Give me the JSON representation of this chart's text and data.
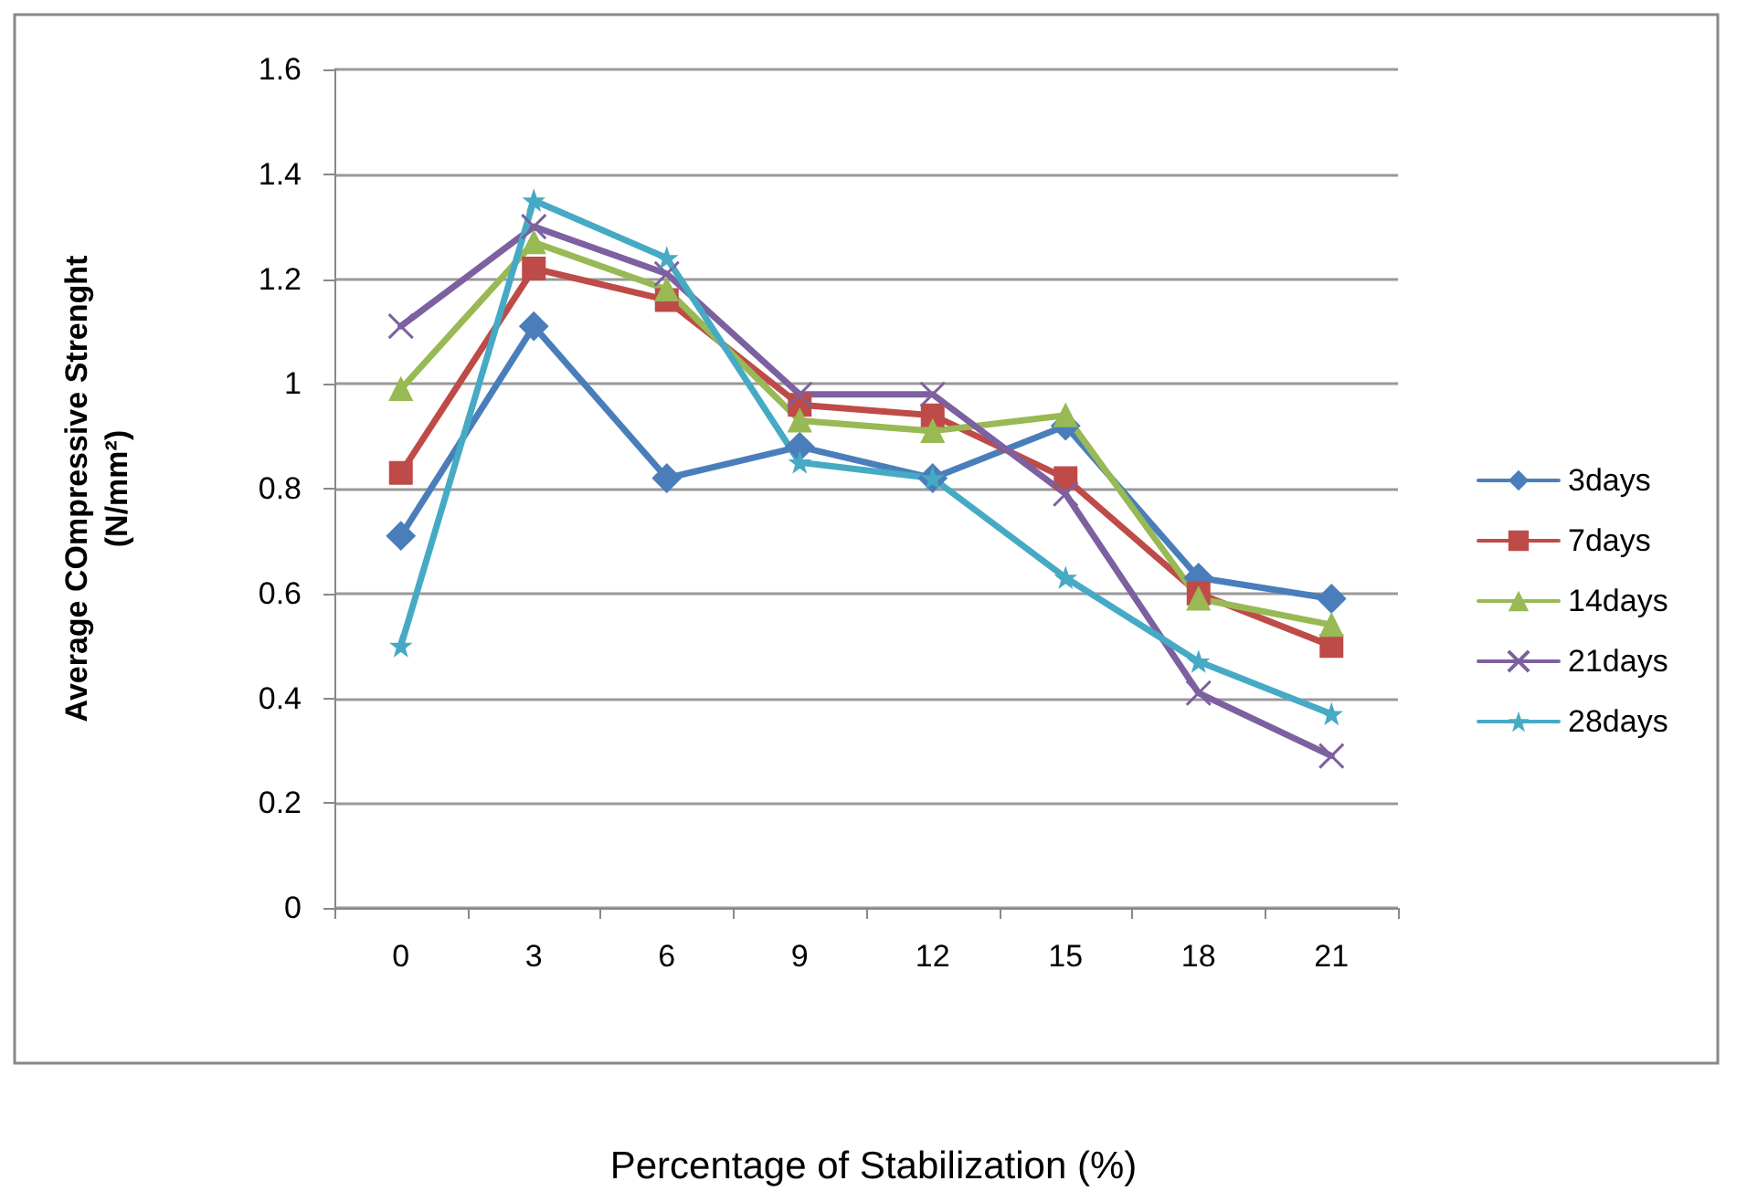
{
  "chart_data": {
    "type": "line",
    "xlabel": "Percentage of Stabilization (%)",
    "ylabel": "Average COmpressive Strenght\n(N/mm²)",
    "categories": [
      "0",
      "3",
      "6",
      "9",
      "12",
      "15",
      "18",
      "21"
    ],
    "series": [
      {
        "name": "3days",
        "color": "#4a7ebb",
        "marker": "diamond",
        "values": [
          0.71,
          1.11,
          0.82,
          0.88,
          0.82,
          0.92,
          0.63,
          0.59
        ]
      },
      {
        "name": "7days",
        "color": "#be4b48",
        "marker": "square",
        "values": [
          0.83,
          1.22,
          1.16,
          0.96,
          0.94,
          0.82,
          0.6,
          0.5
        ]
      },
      {
        "name": "14days",
        "color": "#98b954",
        "marker": "triangle",
        "values": [
          0.99,
          1.27,
          1.18,
          0.93,
          0.91,
          0.94,
          0.59,
          0.54
        ]
      },
      {
        "name": "21days",
        "color": "#7d60a0",
        "marker": "cross",
        "values": [
          1.11,
          1.3,
          1.21,
          0.98,
          0.98,
          0.79,
          0.41,
          0.29
        ]
      },
      {
        "name": "28days",
        "color": "#46aac5",
        "marker": "star",
        "values": [
          0.5,
          1.35,
          1.24,
          0.85,
          0.82,
          0.63,
          0.47,
          0.37
        ]
      }
    ],
    "ylim": [
      0,
      1.6
    ],
    "yticks": [
      0,
      0.2,
      0.4,
      0.6,
      0.8,
      1,
      1.2,
      1.4,
      1.6
    ],
    "grid": "y",
    "legend": "right",
    "line_style": "solid"
  }
}
